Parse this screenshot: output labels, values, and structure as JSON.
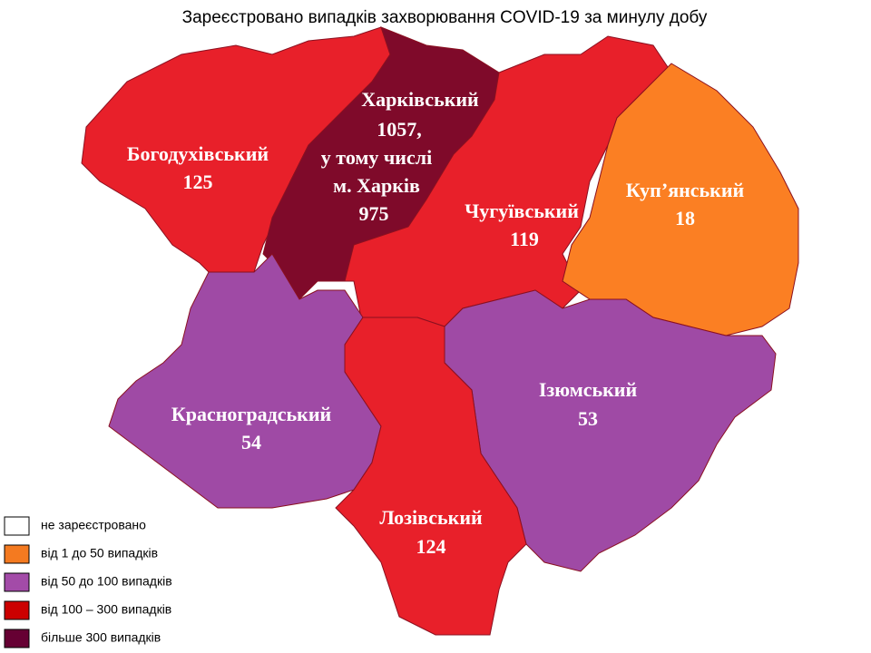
{
  "title": "Зареєстровано випадків захворювання COVID-19 за минулу добу",
  "regions": [
    {
      "lines": [
        "Богодухівський",
        125
      ],
      "color": "#e8202a"
    },
    {
      "lines": [
        "Харківський",
        "1057,",
        "у тому числі",
        "м. Харків",
        975
      ],
      "color": "#7f0a2a"
    },
    {
      "lines": [
        "Чугуївський",
        119
      ],
      "color": "#e8202a"
    },
    {
      "lines": [
        "Куп’янський",
        18
      ],
      "color": "#fb7f23"
    },
    {
      "lines": [
        "Красноградський",
        54
      ],
      "color": "#9f4aa5"
    },
    {
      "lines": [
        "Ізюмський",
        53
      ],
      "color": "#9f4aa5"
    },
    {
      "lines": [
        "Лозівський",
        124
      ],
      "color": "#e8202a"
    }
  ],
  "legend": [
    {
      "label": "не зареєстровано",
      "color": "#ffffff"
    },
    {
      "label": "від 1 до 50  випадків",
      "color": "#f47a20"
    },
    {
      "label": "від 50 до 100  випадків",
      "color": "#a34ba8"
    },
    {
      "label": "від 100 – 300  випадків",
      "color": "#cc0000"
    },
    {
      "label": "більше 300  випадків",
      "color": "#660033"
    }
  ]
}
